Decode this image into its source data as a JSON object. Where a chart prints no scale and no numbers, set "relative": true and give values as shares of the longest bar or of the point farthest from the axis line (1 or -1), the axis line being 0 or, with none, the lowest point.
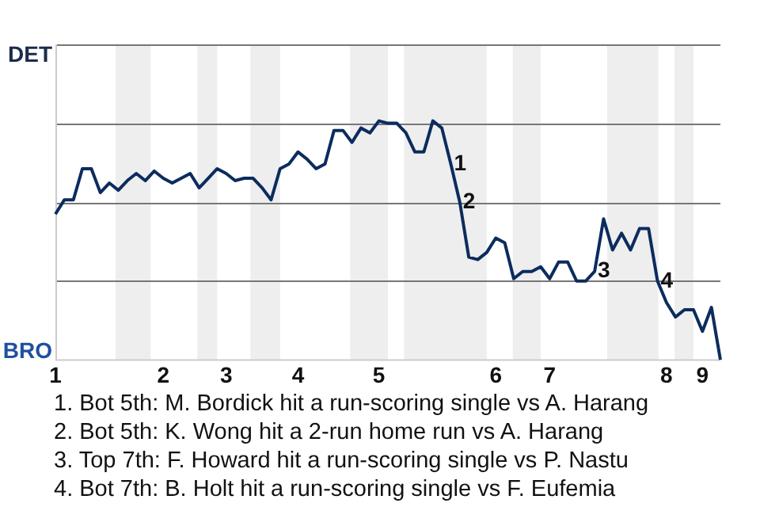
{
  "chart_data": {
    "type": "line",
    "relative": true,
    "categories": [
      "1",
      null,
      null,
      null,
      null,
      null,
      null,
      null,
      null,
      null,
      null,
      null,
      "2",
      null,
      null,
      null,
      null,
      null,
      null,
      "3",
      null,
      null,
      null,
      null,
      null,
      null,
      null,
      "4",
      null,
      null,
      null,
      null,
      null,
      null,
      null,
      null,
      "5",
      null,
      null,
      null,
      null,
      null,
      null,
      null,
      null,
      null,
      null,
      null,
      null,
      "6",
      null,
      null,
      null,
      null,
      null,
      "7",
      null,
      null,
      null,
      null,
      null,
      null,
      null,
      null,
      null,
      null,
      null,
      null,
      "8",
      null,
      null,
      null,
      "9",
      null,
      null
    ],
    "series": [
      {
        "color": "#0c2c5e",
        "values": [
          0.61,
          0.67,
          0.67,
          0.8,
          0.8,
          0.7,
          0.74,
          0.71,
          0.75,
          0.78,
          0.75,
          0.79,
          0.76,
          0.74,
          0.76,
          0.78,
          0.72,
          0.76,
          0.8,
          0.78,
          0.75,
          0.76,
          0.76,
          0.72,
          0.67,
          0.8,
          0.82,
          0.87,
          0.84,
          0.8,
          0.82,
          0.96,
          0.96,
          0.91,
          0.97,
          0.95,
          1,
          0.99,
          0.99,
          0.95,
          0.87,
          0.87,
          1,
          0.97,
          0.82,
          0.66,
          0.43,
          0.42,
          0.45,
          0.51,
          0.49,
          0.34,
          0.37,
          0.37,
          0.39,
          0.34,
          0.41,
          0.41,
          0.33,
          0.33,
          0.37,
          0.59,
          0.46,
          0.53,
          0.46,
          0.55,
          0.55,
          0.33,
          0.24,
          0.18,
          0.21,
          0.21,
          0.12,
          0.22,
          0
        ]
      }
    ],
    "legend": false,
    "marker": "none",
    "line_style": "solid",
    "ref_lines": [
      {
        "axis": "y",
        "value": 0.33,
        "color": "#777777"
      },
      {
        "axis": "y",
        "value": 0.66,
        "color": "#777777"
      },
      {
        "axis": "y",
        "value": 0.99,
        "color": "#777777"
      },
      {
        "axis": "y",
        "value": 1.32,
        "color": "#777777"
      }
    ],
    "annotations": [
      "DET",
      "BRO",
      {
        "text": "1",
        "y": 0.82
      },
      {
        "text": "2",
        "y": 0.66
      },
      {
        "text": "3",
        "y": 0.37
      },
      {
        "text": "4",
        "y": 0.33
      },
      "1. Bot 5th: M. Bordick hit a run-scoring single vs A. Harang",
      "2. Bot 5th: K. Wong hit a 2-run home run vs A. Harang",
      "3. Top 7th: F. Howard hit a run-scoring single vs P. Nastu",
      "4. Bot 7th: B. Holt hit a run-scoring single vs F. Eufemia"
    ]
  }
}
